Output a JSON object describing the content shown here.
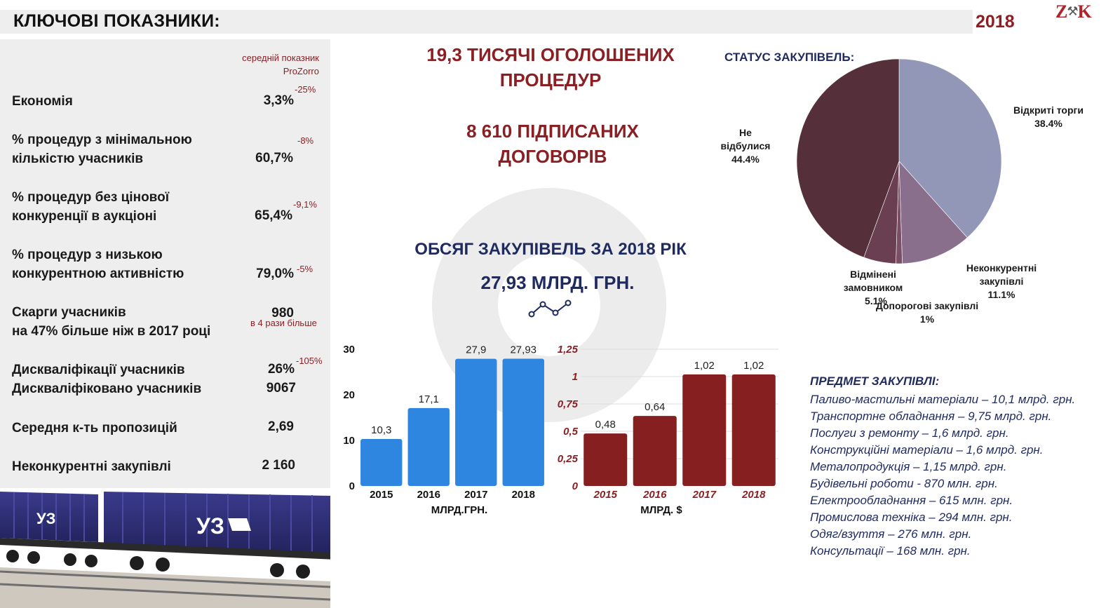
{
  "header": {
    "title": "КЛЮЧОВІ ПОКАЗНИКИ:",
    "year": "2018",
    "logo_text": "ZK"
  },
  "kpi_panel": {
    "note": [
      "середній показник",
      "ProZorro"
    ],
    "items": [
      {
        "label": [
          "Економія"
        ],
        "value": [
          "3,3%"
        ],
        "delta": "-25%"
      },
      {
        "label": [
          "% процедур з мінімальною",
          "кількістю учасників"
        ],
        "value": [
          "60,7%"
        ],
        "delta": "-8%"
      },
      {
        "label": [
          "% процедур без цінової",
          "конкуренції в аукціоні"
        ],
        "value": [
          "65,4%"
        ],
        "delta": "-9,1%"
      },
      {
        "label": [
          "% процедур з низькою",
          "конкурентною активністю"
        ],
        "value": [
          "79,0%"
        ],
        "delta": "-5%"
      },
      {
        "label": [
          "Скарги учасників",
          "на 47% більше ніж в 2017 році"
        ],
        "value": [
          "980"
        ],
        "delta": "в 4 рази більше"
      },
      {
        "label": [
          "Дискваліфікації учасників",
          "Дискваліфіковано учасників"
        ],
        "value": [
          "26%",
          "9067"
        ],
        "delta": "-105%"
      },
      {
        "label": [
          "Середня к-ть пропозицій"
        ],
        "value": [
          "2,69"
        ],
        "delta": ""
      },
      {
        "label": [
          "Неконкурентні закупівлі"
        ],
        "value": [
          "2 160"
        ],
        "delta": ""
      }
    ]
  },
  "headlines": {
    "procedures": [
      "19,3 ТИСЯЧІ ОГОЛОШЕНИХ",
      "ПРОЦЕДУР"
    ],
    "contracts": [
      "8 610 ПІДПИСАНИХ",
      "ДОГОВОРІВ"
    ],
    "volume_title": "ОБСЯГ ЗАКУПІВЕЛЬ ЗА 2018 РІК",
    "volume_value": "27,93 МЛРД. ГРН."
  },
  "pie_title": "СТАТУС ЗАКУПІВЕЛЬ:",
  "subject": {
    "title": "ПРЕДМЕТ ЗАКУПІВЛІ:",
    "items": [
      "Паливо-мастильні матеріали – 10,1 млрд. грн.",
      "Транспортне обладнання – 9,75 млрд. грн.",
      "Послуги з ремонту  – 1,6 млрд. грн.",
      "Конструкційні матеріали – 1,6 млрд. грн.",
      "Металопродукція – 1,15 млрд. грн.",
      "Будівельні роботи - 870 млн. грн.",
      "Електрообладнання – 615 млн. грн.",
      "Промислова техніка – 294 млн. грн.",
      "Одяг/взуття – 276 млн. грн.",
      "Консультації – 168 млн. грн."
    ]
  },
  "colors": {
    "brand_red": "#8a1f24",
    "navy": "#1f2a5e",
    "bar_blue": "#2f86e0",
    "bar_red": "#862020",
    "pie": [
      "#9297b8",
      "#8a6f8c",
      "#7a4f66",
      "#6a3f52",
      "#55303b"
    ]
  },
  "icons": {
    "trend": "line-chart-icon",
    "train": "freight-wagon-image"
  },
  "chart_data": [
    {
      "type": "bar",
      "categories": [
        "2015",
        "2016",
        "2017",
        "2018"
      ],
      "values": [
        10.3,
        17.1,
        27.9,
        27.93
      ],
      "data_labels": [
        "10,3",
        "17,1",
        "27,9",
        "27,93"
      ],
      "ytick_labels": [
        "0",
        "10",
        "20",
        "30"
      ],
      "ylim": [
        0,
        30
      ],
      "xlabel": "МЛРД.ГРН.",
      "color": "#2f86e0"
    },
    {
      "type": "bar",
      "categories": [
        "2015",
        "2016",
        "2017",
        "2018"
      ],
      "values": [
        0.48,
        0.64,
        1.02,
        1.02
      ],
      "data_labels": [
        "0,48",
        "0,64",
        "1,02",
        "1,02"
      ],
      "ytick_labels": [
        "0",
        "0,25",
        "0,5",
        "0,75",
        "1",
        "1,25"
      ],
      "ylim": [
        0,
        1.25
      ],
      "xlabel": "МЛРД. $",
      "grid": true,
      "color": "#862020"
    },
    {
      "type": "pie",
      "slices": [
        {
          "label": [
            "Відкриті торги"
          ],
          "pct": "38.4%",
          "value": 38.4
        },
        {
          "label": [
            "Неконкурентні",
            "закупівлі"
          ],
          "pct": "11.1%",
          "value": 11.1
        },
        {
          "label": [
            "Допорогові закупівлі"
          ],
          "pct": "1%",
          "value": 1.0
        },
        {
          "label": [
            "Відмінені",
            "замовником"
          ],
          "pct": "5.1%",
          "value": 5.1
        },
        {
          "label": [
            "Не",
            "відбулися"
          ],
          "pct": "44.4%",
          "value": 44.4
        }
      ]
    }
  ]
}
